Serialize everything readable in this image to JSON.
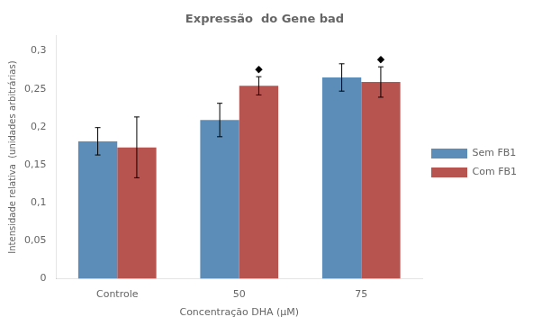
{
  "chart_data": {
    "type": "bar",
    "title": "Expressão  do Gene bad",
    "xlabel": "Concentração DHA (μM)",
    "ylabel": "Intensidade relativa  (unidades arbitrárias)",
    "categories": [
      "Controle",
      "50",
      "75"
    ],
    "series": [
      {
        "name": "Sem FB1",
        "color": "#5B8DB8",
        "values": [
          0.181,
          0.209,
          0.265
        ],
        "errors": [
          0.018,
          0.022,
          0.018
        ]
      },
      {
        "name": "Com FB1",
        "color": "#B85450",
        "values": [
          0.173,
          0.254,
          0.259
        ],
        "errors": [
          0.04,
          0.012,
          0.02
        ]
      }
    ],
    "annotations": [
      {
        "text": "◆",
        "category": "50",
        "series": "Com FB1"
      },
      {
        "text": "◆",
        "category": "75",
        "series": "Com FB1"
      }
    ],
    "ylim": [
      0,
      0.32
    ],
    "yticks": [
      0,
      {
        "value": 0.05,
        "label": "0,05"
      },
      {
        "value": 0.1,
        "label": "0,1"
      },
      {
        "value": 0.15,
        "label": "0,15"
      },
      {
        "value": 0.2,
        "label": "0,2"
      },
      {
        "value": 0.25,
        "label": "0,25"
      },
      {
        "value": 0.3,
        "label": "0,3"
      }
    ],
    "grid": false,
    "legend": "right"
  }
}
